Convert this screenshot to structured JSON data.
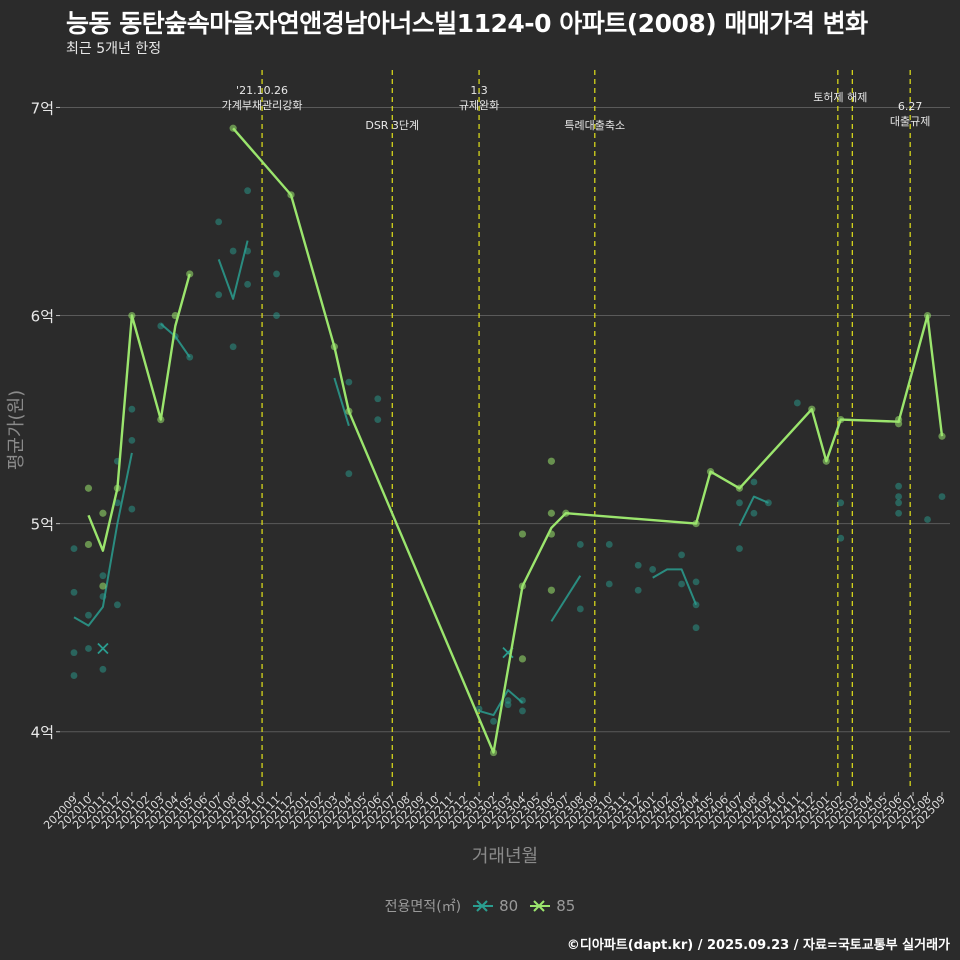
{
  "title": "능동 동탄숲속마을자연앤경남아너스빌1124-0 아파트(2008) 매매가격 변화",
  "subtitle": "최근 5개년 한정",
  "caption": "©디아파트(dapt.kr) / 2025.09.23 / 자료=국토교통부 실거래가",
  "chart_data": {
    "type": "line",
    "xlabel": "거래년월",
    "ylabel": "평균가(원)",
    "x_ticks": [
      "202009",
      "202010",
      "202011",
      "202012",
      "202101",
      "202102",
      "202103",
      "202104",
      "202105",
      "202106",
      "202107",
      "202108",
      "202109",
      "202110",
      "202111",
      "202112",
      "202201",
      "202202",
      "202203",
      "202204",
      "202205",
      "202206",
      "202207",
      "202208",
      "202209",
      "202210",
      "202211",
      "202212",
      "202301",
      "202302",
      "202303",
      "202304",
      "202305",
      "202306",
      "202307",
      "202308",
      "202309",
      "202310",
      "202311",
      "202312",
      "202401",
      "202402",
      "202403",
      "202404",
      "202405",
      "202406",
      "202407",
      "202408",
      "202409",
      "202410",
      "202411",
      "202412",
      "202501",
      "202502",
      "202503",
      "202504",
      "202505",
      "202506",
      "202507",
      "202508",
      "202509"
    ],
    "y_ticks": [
      {
        "value": 4,
        "label": "4억"
      },
      {
        "value": 5,
        "label": "5억"
      },
      {
        "value": 6,
        "label": "6억"
      },
      {
        "value": 7,
        "label": "7억"
      }
    ],
    "ylim": [
      3.72,
      7.18
    ],
    "legend_title": "전용면적(㎡)",
    "legend_position": "bottom",
    "series": [
      {
        "name": "80",
        "color": "#2a9d8f",
        "line_segments": [
          [
            [
              0,
              4.55
            ],
            [
              1,
              4.51
            ],
            [
              2,
              4.6
            ],
            [
              3,
              5.0
            ],
            [
              4,
              5.34
            ]
          ],
          [
            [
              6,
              5.96
            ],
            [
              7,
              5.9
            ],
            [
              8,
              5.8
            ]
          ],
          [
            [
              10,
              6.27
            ],
            [
              11,
              6.08
            ],
            [
              12,
              6.36
            ]
          ],
          [
            [
              18,
              5.7
            ],
            [
              19,
              5.47
            ]
          ],
          [
            [
              28,
              4.1
            ],
            [
              29,
              4.08
            ],
            [
              30,
              4.2
            ],
            [
              31,
              4.14
            ]
          ],
          [
            [
              33,
              4.53
            ],
            [
              35,
              4.75
            ]
          ],
          [
            [
              40,
              4.74
            ],
            [
              41,
              4.78
            ],
            [
              42,
              4.78
            ],
            [
              43,
              4.61
            ]
          ],
          [
            [
              46,
              4.99
            ],
            [
              47,
              5.13
            ],
            [
              48,
              5.1
            ]
          ]
        ],
        "points": [
          [
            0,
            4.88
          ],
          [
            0,
            4.67
          ],
          [
            0,
            4.38
          ],
          [
            0,
            4.27
          ],
          [
            1,
            4.56
          ],
          [
            1,
            4.4
          ],
          [
            2,
            4.75
          ],
          [
            2,
            4.65
          ],
          [
            2,
            4.3
          ],
          [
            3,
            5.3
          ],
          [
            3,
            5.1
          ],
          [
            3,
            4.61
          ],
          [
            4,
            5.55
          ],
          [
            4,
            5.4
          ],
          [
            4,
            5.07
          ],
          [
            6,
            5.95
          ],
          [
            7,
            5.9
          ],
          [
            8,
            5.8
          ],
          [
            10,
            6.45
          ],
          [
            10,
            6.1
          ],
          [
            11,
            6.31
          ],
          [
            11,
            5.85
          ],
          [
            12,
            6.6
          ],
          [
            12,
            6.31
          ],
          [
            12,
            6.15
          ],
          [
            14,
            6.2
          ],
          [
            14,
            6.0
          ],
          [
            19,
            5.68
          ],
          [
            19,
            5.24
          ],
          [
            21,
            5.6
          ],
          [
            21,
            5.5
          ],
          [
            28,
            4.11
          ],
          [
            29,
            4.05
          ],
          [
            30,
            4.15
          ],
          [
            30,
            4.13
          ],
          [
            31,
            4.15
          ],
          [
            31,
            4.1
          ],
          [
            35,
            4.9
          ],
          [
            35,
            4.59
          ],
          [
            37,
            4.9
          ],
          [
            37,
            4.71
          ],
          [
            39,
            4.8
          ],
          [
            39,
            4.68
          ],
          [
            40,
            4.78
          ],
          [
            42,
            4.85
          ],
          [
            42,
            4.71
          ],
          [
            43,
            4.72
          ],
          [
            43,
            4.61
          ],
          [
            43,
            4.5
          ],
          [
            46,
            5.1
          ],
          [
            46,
            4.88
          ],
          [
            47,
            5.2
          ],
          [
            47,
            5.05
          ],
          [
            48,
            5.1
          ],
          [
            50,
            5.58
          ],
          [
            53,
            5.1
          ],
          [
            53,
            4.93
          ],
          [
            57,
            5.18
          ],
          [
            57,
            5.13
          ],
          [
            57,
            5.1
          ],
          [
            57,
            5.05
          ],
          [
            59,
            5.02
          ],
          [
            60,
            5.13
          ]
        ],
        "x_markers": [
          [
            2,
            4.4
          ],
          [
            30,
            4.38
          ]
        ]
      },
      {
        "name": "85",
        "color": "#9be56d",
        "line_segments": [
          [
            [
              1,
              5.04
            ],
            [
              2,
              4.87
            ],
            [
              3,
              5.17
            ],
            [
              4,
              6.0
            ],
            [
              6,
              5.5
            ],
            [
              7,
              5.95
            ],
            [
              8,
              6.2
            ]
          ],
          [
            [
              11,
              6.9
            ],
            [
              15,
              6.58
            ],
            [
              18,
              5.85
            ],
            [
              19,
              5.54
            ],
            [
              29,
              3.9
            ],
            [
              31,
              4.7
            ],
            [
              33,
              4.98
            ],
            [
              34,
              5.05
            ],
            [
              43,
              5.0
            ],
            [
              44,
              5.25
            ],
            [
              46,
              5.17
            ],
            [
              51,
              5.55
            ],
            [
              52,
              5.3
            ],
            [
              53,
              5.5
            ],
            [
              57,
              5.49
            ],
            [
              59,
              6.0
            ],
            [
              60,
              5.42
            ]
          ]
        ],
        "points": [
          [
            1,
            5.17
          ],
          [
            1,
            4.9
          ],
          [
            2,
            5.05
          ],
          [
            2,
            4.7
          ],
          [
            3,
            5.17
          ],
          [
            4,
            6.0
          ],
          [
            6,
            5.5
          ],
          [
            7,
            6.0
          ],
          [
            8,
            6.2
          ],
          [
            11,
            6.9
          ],
          [
            15,
            6.58
          ],
          [
            18,
            5.85
          ],
          [
            19,
            5.54
          ],
          [
            29,
            3.9
          ],
          [
            31,
            4.95
          ],
          [
            31,
            4.7
          ],
          [
            31,
            4.35
          ],
          [
            33,
            5.3
          ],
          [
            33,
            5.05
          ],
          [
            33,
            4.95
          ],
          [
            33,
            4.68
          ],
          [
            34,
            5.05
          ],
          [
            43,
            5.0
          ],
          [
            44,
            5.25
          ],
          [
            46,
            5.17
          ],
          [
            51,
            5.55
          ],
          [
            52,
            5.3
          ],
          [
            53,
            5.5
          ],
          [
            57,
            5.5
          ],
          [
            57,
            5.48
          ],
          [
            59,
            6.0
          ],
          [
            60,
            5.42
          ]
        ]
      }
    ],
    "annotations": [
      {
        "x": 13,
        "text_lines": [
          "'21.10.26",
          "가계부채관리강화"
        ],
        "level": 0
      },
      {
        "x": 22,
        "text_lines": [
          "DSR 3단계"
        ],
        "level": 1
      },
      {
        "x": 28,
        "text_lines": [
          "1.3",
          "규제완화"
        ],
        "level": 0
      },
      {
        "x": 36,
        "text_lines": [
          "특례대출축소"
        ],
        "level": 1
      },
      {
        "x": 52.8,
        "text_lines": [],
        "level": 0
      },
      {
        "x": 53.8,
        "text_lines": [
          "토허제 해제"
        ],
        "level": 0.2,
        "text_offset": -12
      },
      {
        "x": 57.8,
        "text_lines": [
          "6.27",
          "대출규제"
        ],
        "level": 0.45
      }
    ]
  }
}
